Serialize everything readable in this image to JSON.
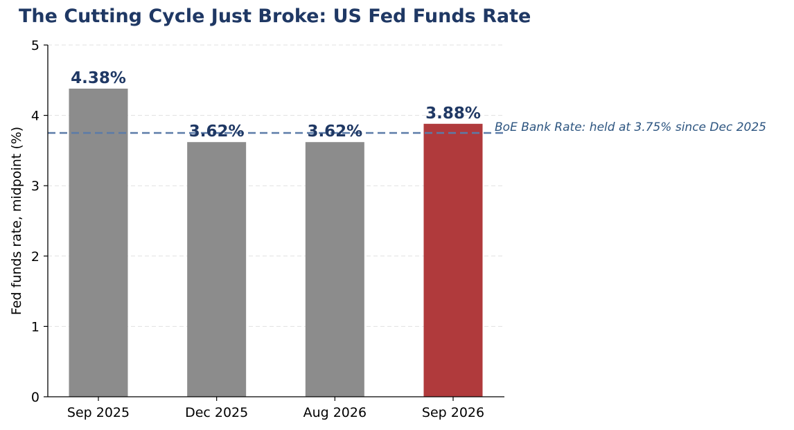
{
  "chart_data": {
    "type": "bar",
    "title": "The Cutting Cycle Just Broke: US Fed Funds Rate",
    "xlabel": "",
    "ylabel": "Fed funds rate, midpoint (%)",
    "categories": [
      "Sep 2025",
      "Dec 2025",
      "Aug 2026",
      "Sep 2026"
    ],
    "values": [
      4.38,
      3.62,
      3.62,
      3.88
    ],
    "data_labels": [
      "4.38%",
      "3.62%",
      "3.62%",
      "3.88%"
    ],
    "ylim": [
      0,
      5
    ],
    "yticks": [
      0,
      1,
      2,
      3,
      4,
      5
    ],
    "ytick_labels": [
      "0",
      "1",
      "2",
      "3",
      "4",
      "5"
    ],
    "bar_colors": [
      "#8c8c8c",
      "#8c8c8c",
      "#8c8c8c",
      "#b03a3c"
    ],
    "grid": "y-dashed",
    "reference_line": {
      "value": 3.75,
      "label": "BoE Bank Rate: held at 3.75% since Dec 2025",
      "color": "#5b7ba8",
      "style": "dashed"
    },
    "colors": {
      "title": "#1f3864",
      "data_label": "#1f3864",
      "reference_label": "#2d5580",
      "highlight": "#b03a3c",
      "default_bar": "#8c8c8c"
    }
  }
}
